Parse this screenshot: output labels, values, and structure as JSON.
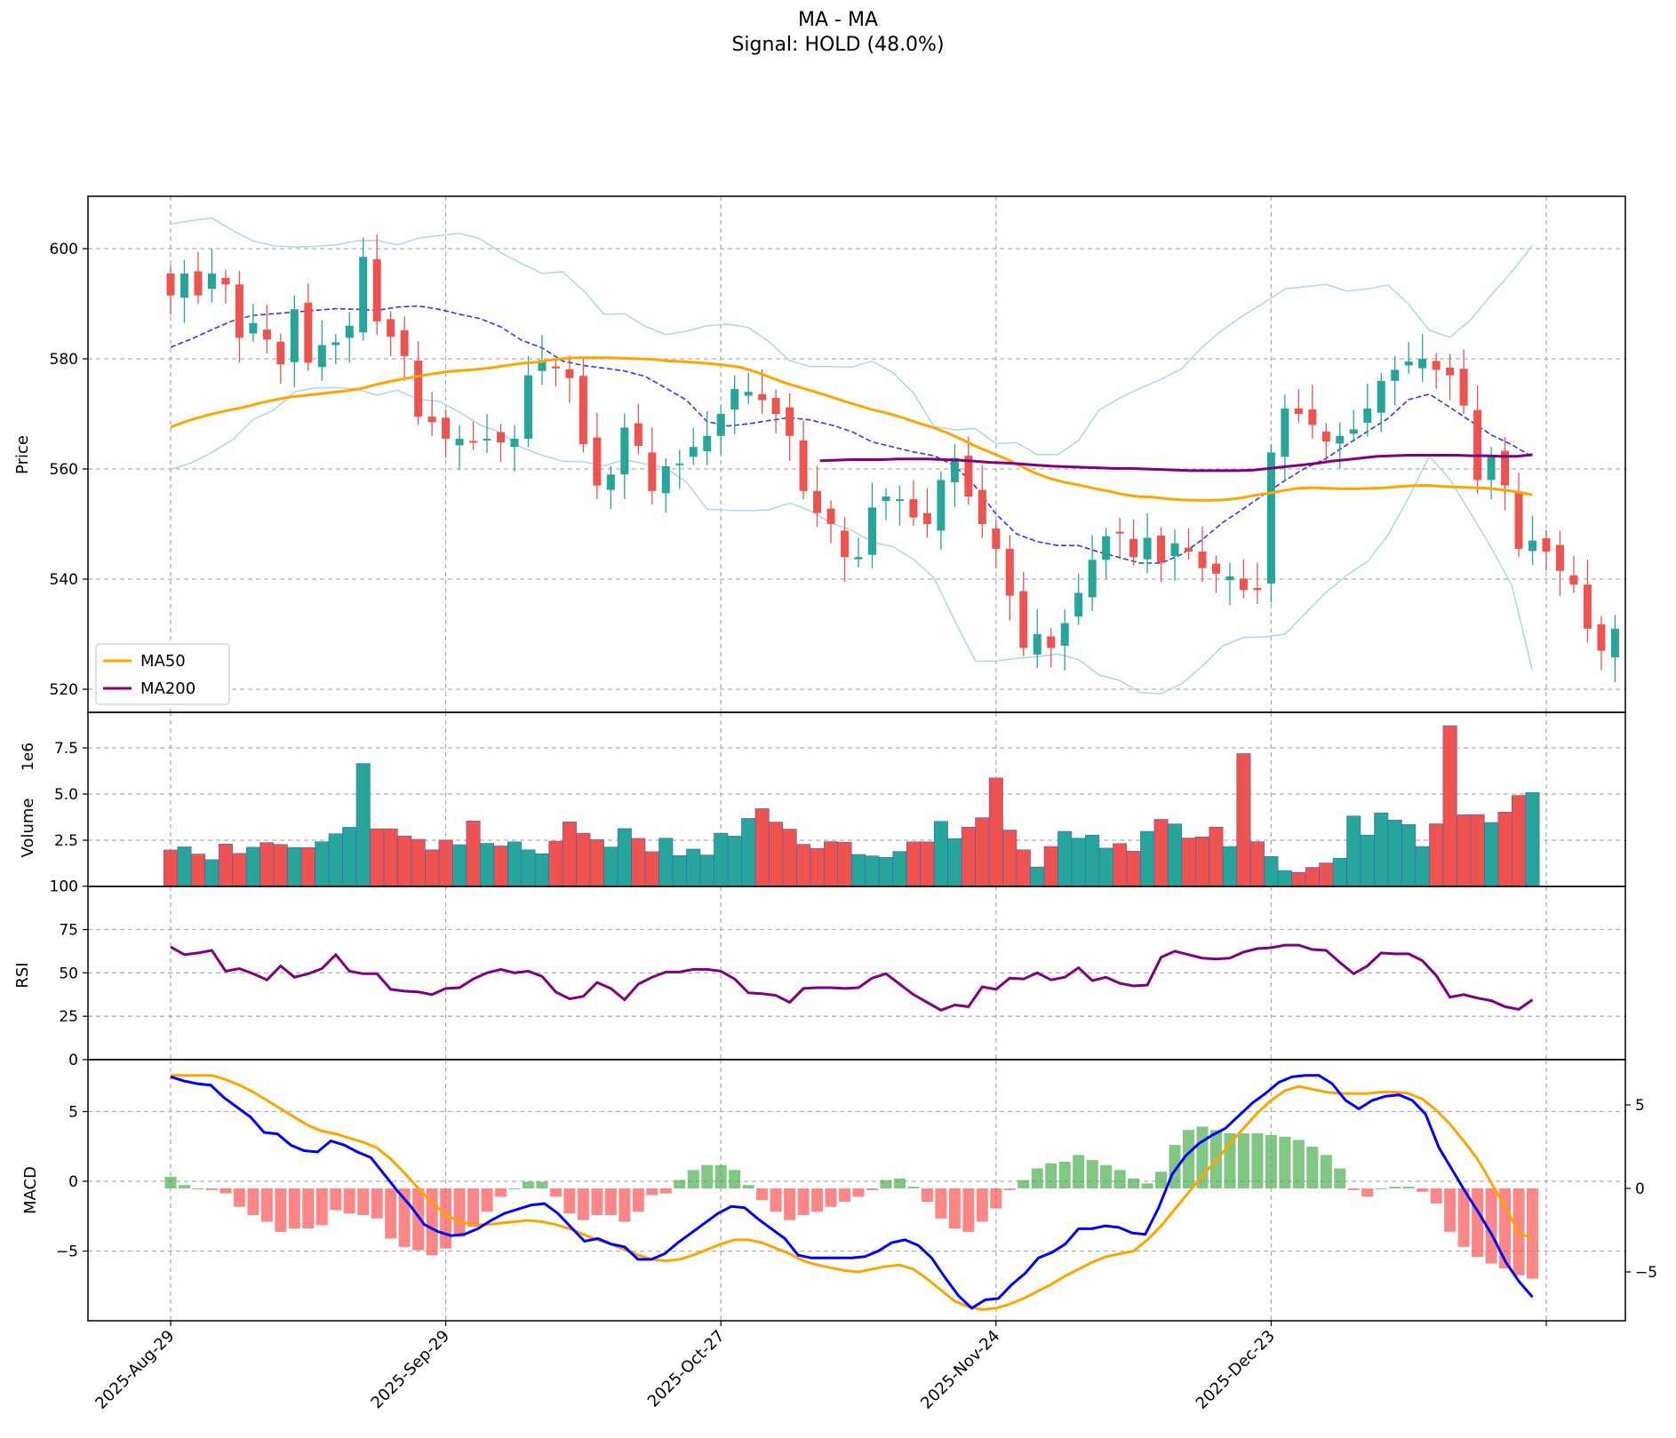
{
  "title": "MA - MA",
  "subtitle": "Signal: HOLD (48.0%)",
  "colors": {
    "up": "#26a69a",
    "down": "#ef5350",
    "ma50": "#ffa500",
    "ma200": "#800080",
    "bb_mid": "#3333ff",
    "bb_band": "#add8e6",
    "macd": "#0000ff",
    "signal": "#ffa500",
    "hist_pos": "#4caf50",
    "hist_neg": "#ff5252",
    "rsi": "#800080"
  },
  "chart_data": {
    "type": "candlestick",
    "x_tick_labels": [
      "2025-Aug-29",
      "2025-Sep-29",
      "2025-Oct-27",
      "2025-Nov-24",
      "2025-Dec-23"
    ],
    "n_bars": 100,
    "price_panel": {
      "ylabel": "Price",
      "ylim": [
        518,
        610
      ],
      "yticks": [
        520,
        540,
        560,
        580,
        600
      ],
      "legend": [
        "MA50",
        "MA200"
      ],
      "legend_loc": "lower-left",
      "closes": [
        591.5,
        595.5,
        591.5,
        595.5,
        593.5,
        583.8,
        586.5,
        583.5,
        579,
        589,
        579.3,
        582.5,
        583,
        586,
        598.5,
        586.8,
        584,
        580.5,
        569.5,
        568.5,
        565.5,
        565.5,
        565,
        565.5,
        564.8,
        565.5,
        577,
        579.8,
        578.5,
        576.5,
        564.5,
        557,
        559,
        567.5,
        564.2,
        556,
        560.5,
        561,
        564,
        566,
        570,
        574.5,
        574,
        572.5,
        570,
        566,
        556,
        552,
        550,
        544,
        544,
        553,
        555,
        554.5,
        551.2,
        550,
        558,
        562,
        555,
        550,
        545.5,
        537,
        527.5,
        530,
        527.5,
        532,
        537.5,
        543.5,
        547.8,
        548.5,
        544,
        547.5,
        543,
        546.5,
        545,
        542,
        541,
        540.5,
        538,
        538,
        563,
        571,
        570,
        568,
        565,
        566,
        567.2,
        571,
        576,
        578,
        579.5,
        580,
        578,
        577,
        571.5,
        558,
        562.5,
        557,
        545.5,
        547,
        545,
        541.5,
        539,
        531,
        527,
        531
      ],
      "ma50": [
        567.6,
        568.6,
        569.4,
        570.1,
        570.7,
        571.2,
        571.9,
        572.5,
        573,
        573.3,
        573.6,
        573.9,
        574.2,
        574.6,
        575.3,
        575.9,
        576.4,
        576.9,
        577.3,
        577.7,
        577.9,
        578.1,
        578.4,
        578.8,
        579.2,
        579.4,
        579.8,
        580.1,
        580.2,
        580.2,
        580.2,
        580.1,
        580,
        579.9,
        579.6,
        579.5,
        579.3,
        579.1,
        578.8,
        578.4,
        577.6,
        576.6,
        575.6,
        574.8,
        574,
        573.2,
        572.3,
        571.5,
        570.7,
        570.1,
        569.3,
        568.4,
        567.6,
        566.6,
        565.4,
        564.1,
        563,
        561.9,
        560.6,
        559.3,
        558.3,
        557.6,
        557.1,
        556.5,
        556,
        555.4,
        555,
        554.9,
        554.6,
        554.4,
        554.3,
        554.3,
        554.4,
        554.7,
        555.2,
        555.6,
        556.1,
        556.5,
        556.6,
        556.5,
        556.4,
        556.4,
        556.5,
        556.6,
        556.8,
        557,
        557,
        556.8,
        556.7,
        556.6,
        556.5,
        556.2,
        555.8,
        555.3
      ],
      "ma200": [
        561.5,
        561.6,
        561.7,
        561.7,
        561.7,
        561.8,
        561.8,
        561.8,
        561.7,
        561.6,
        561.4,
        561.2,
        561.1,
        560.9,
        560.7,
        560.5,
        560.4,
        560.3,
        560.2,
        560.1,
        560.1,
        560,
        559.9,
        559.8,
        559.7,
        559.7,
        559.7,
        559.7,
        559.8,
        560.1,
        560.4,
        560.7,
        561,
        561.4,
        561.7,
        562,
        562.3,
        562.4,
        562.5,
        562.5,
        562.5,
        562.5,
        562.4,
        562.4,
        562.3,
        562.3,
        562.6
      ],
      "bb_mid": [
        582.1,
        583.6,
        585.3,
        586.9,
        587.9,
        588.2,
        588.5,
        588.8,
        589.1,
        589,
        588.8,
        589.4,
        589.6,
        589,
        588.1,
        587.3,
        585.8,
        583.4,
        582,
        579.6,
        578.8,
        578.3,
        577.8,
        576.8,
        574.7,
        572.5,
        568.6,
        567.8,
        568.2,
        568.8,
        569.3,
        568.9,
        568,
        566.8,
        564.9,
        564,
        563.1,
        562.4,
        560.6,
        556.8,
        551.8,
        548.2,
        546.8,
        546.1,
        546.1,
        544.9,
        543.9,
        542.9,
        542.9,
        544.5,
        547.2,
        550.3,
        552.8,
        555.4,
        557.9,
        560.2,
        561.9,
        564.4,
        566.8,
        569.2,
        572.6,
        573.6,
        571.2,
        568.7,
        566.2,
        564.4,
        562.2
      ],
      "bb_upper": [
        604.5,
        605.1,
        605.6,
        603.3,
        601.4,
        600.5,
        600.3,
        600.4,
        600.7,
        601.4,
        601.5,
        600.7,
        601.9,
        602.4,
        602.8,
        601.8,
        599.3,
        597.3,
        595.5,
        595.8,
        592.4,
        588.1,
        588.2,
        585.9,
        584.4,
        585,
        586,
        586.3,
        585.7,
        583.1,
        579.7,
        578.6,
        578.6,
        578.5,
        579.6,
        577.5,
        573.8,
        567.7,
        567.1,
        567.3,
        564.6,
        564.8,
        562.6,
        562.6,
        565.2,
        570.7,
        572.9,
        574.7,
        576.3,
        578.2,
        582.2,
        585.3,
        587.9,
        590.2,
        592.7,
        593.1,
        593.5,
        592.3,
        592.7,
        593.4,
        589.9,
        585.2,
        583.9,
        587.1,
        591.6,
        595.8,
        600.6
      ],
      "bb_lower": [
        559.9,
        561.1,
        563,
        565.3,
        569,
        570.7,
        574,
        574.7,
        574.8,
        574.5,
        573.4,
        574.3,
        572.6,
        572.3,
        570.3,
        568,
        566.6,
        563.9,
        562.5,
        561.4,
        561.3,
        560.6,
        561.7,
        560.9,
        560.2,
        557.6,
        552.7,
        552.5,
        552.4,
        552.6,
        553.8,
        552.4,
        550.2,
        548.9,
        546.7,
        545.9,
        543.6,
        540.2,
        532.4,
        525.1,
        525.1,
        525.6,
        525.9,
        526.4,
        525.4,
        522.6,
        521.6,
        519.4,
        519.2,
        521,
        524.2,
        527.9,
        529.4,
        529.5,
        530,
        533.8,
        537.6,
        540.7,
        543.2,
        548,
        554.8,
        562.3,
        558.1,
        552,
        545.7,
        538.8,
        523.4
      ]
    },
    "volume_panel": {
      "ylabel": "Volume",
      "scale_label": "1e6",
      "yticks": [
        2.5,
        5.0,
        7.5
      ],
      "ylim": [
        0,
        9.5
      ],
      "values_millions": [
        1.97,
        2.14,
        1.75,
        1.45,
        2.29,
        1.79,
        2.12,
        2.37,
        2.27,
        2.11,
        2.1,
        2.42,
        2.85,
        3.2,
        6.65,
        3.12,
        3.12,
        2.73,
        2.55,
        1.98,
        2.51,
        2.26,
        3.54,
        2.33,
        2.19,
        2.41,
        1.98,
        1.77,
        2.45,
        3.49,
        2.88,
        2.53,
        2.13,
        3.13,
        2.6,
        1.88,
        2.61,
        1.67,
        2.02,
        1.7,
        2.88,
        2.72,
        3.68,
        4.21,
        3.48,
        3.1,
        2.28,
        2.06,
        2.42,
        2.39,
        1.73,
        1.65,
        1.57,
        1.89,
        2.41,
        2.41,
        3.52,
        2.59,
        3.21,
        3.72,
        5.87,
        3.05,
        1.98,
        1.05,
        2.16,
        2.98,
        2.61,
        2.78,
        2.07,
        2.32,
        1.91,
        2.98,
        3.63,
        3.38,
        2.62,
        2.68,
        3.21,
        2.16,
        7.19,
        2.42,
        1.62,
        0.86,
        0.76,
        1.03,
        1.27,
        1.53,
        3.81,
        2.78,
        3.98,
        3.59,
        3.35,
        2.16,
        3.39,
        8.7,
        3.88,
        3.89,
        3.46,
        4.02,
        4.92,
        5.08
      ]
    },
    "rsi_panel": {
      "ylabel": "RSI",
      "ylim": [
        0,
        100
      ],
      "yticks": [
        0,
        25,
        50,
        75,
        100
      ],
      "values": [
        65,
        60.5,
        61.5,
        63,
        51,
        52.5,
        49.5,
        46,
        54,
        47.5,
        49.5,
        52.5,
        60.5,
        51,
        49.5,
        49.5,
        40.5,
        39.5,
        39,
        37.5,
        41,
        41.5,
        46.5,
        50,
        52,
        50,
        51,
        48,
        39,
        35,
        36.5,
        44.5,
        41,
        34.5,
        43.5,
        47.5,
        50.5,
        50.5,
        52,
        52,
        51,
        46.5,
        38.5,
        38,
        37,
        33,
        41,
        41.5,
        41.5,
        41,
        41.5,
        47,
        49.5,
        43.5,
        37.5,
        33,
        28.5,
        31.5,
        30.5,
        42,
        40.5,
        47,
        46.5,
        50,
        46,
        47.5,
        53,
        45.5,
        47.5,
        44,
        42.5,
        43,
        59,
        62.5,
        60.5,
        58.5,
        58,
        58.5,
        62,
        64,
        64.5,
        66,
        66,
        63.5,
        63,
        56,
        49.5,
        54,
        61.5,
        61,
        61,
        57,
        48.5,
        36,
        37.5,
        35.5,
        34,
        30.5,
        29,
        34.5
      ]
    },
    "macd_panel": {
      "ylabel": "MACD",
      "yticks_left": [
        -5,
        0,
        5
      ],
      "yticks_right": [
        -5,
        0,
        5
      ],
      "ylim": [
        -9.8,
        8.1
      ],
      "macd": [
        7.5,
        7.2,
        7,
        6.9,
        6,
        5.3,
        4.6,
        3.5,
        3.4,
        2.6,
        2.2,
        2.1,
        2.9,
        2.6,
        2.1,
        1.7,
        0.5,
        -0.7,
        -1.8,
        -3.1,
        -3.6,
        -3.9,
        -3.8,
        -3.4,
        -2.8,
        -2.3,
        -2,
        -1.7,
        -1.6,
        -2.3,
        -3.3,
        -4.3,
        -4.1,
        -4.5,
        -4.7,
        -5.6,
        -5.6,
        -5.2,
        -4.4,
        -3.7,
        -3,
        -2.3,
        -1.8,
        -1.9,
        -2.7,
        -3.4,
        -4.1,
        -5.3,
        -5.5,
        -5.5,
        -5.5,
        -5.5,
        -5.4,
        -5,
        -4.4,
        -4.2,
        -4.6,
        -5.5,
        -6.9,
        -8.2,
        -9.1,
        -8.5,
        -8.4,
        -7.4,
        -6.6,
        -5.5,
        -5.1,
        -4.5,
        -3.4,
        -3.4,
        -3.2,
        -3.3,
        -3.7,
        -3.8,
        -1.9,
        0.5,
        1.8,
        2.7,
        3.3,
        3.8,
        4.7,
        5.6,
        6.3,
        7.1,
        7.5,
        7.6,
        7.6,
        7,
        5.8,
        5.2,
        5.8,
        6.1,
        6.2,
        5.8,
        4.8,
        2.4,
        0.8,
        -0.8,
        -2.3,
        -3.9,
        -5.8,
        -7.2,
        -8.3
      ],
      "signal": [
        7.6,
        7.6,
        7.6,
        7.6,
        7.3,
        6.9,
        6.4,
        5.8,
        5.2,
        4.6,
        4,
        3.6,
        3.4,
        3.1,
        2.8,
        2.4,
        1.6,
        0.6,
        -0.5,
        -1.5,
        -2.4,
        -2.9,
        -3.1,
        -3.1,
        -3,
        -2.9,
        -2.8,
        -2.9,
        -3.1,
        -3.4,
        -3.8,
        -4.2,
        -4.5,
        -4.9,
        -5.3,
        -5.6,
        -5.7,
        -5.6,
        -5.3,
        -4.9,
        -4.5,
        -4.2,
        -4.2,
        -4.4,
        -4.8,
        -5.2,
        -5.7,
        -6,
        -6.2,
        -6.4,
        -6.5,
        -6.3,
        -6.1,
        -6,
        -6.3,
        -7,
        -7.8,
        -8.6,
        -9,
        -9.2,
        -9.1,
        -8.8,
        -8.4,
        -7.9,
        -7.4,
        -6.8,
        -6.3,
        -5.8,
        -5.4,
        -5.2,
        -5,
        -4.2,
        -3.2,
        -2,
        -0.8,
        0.4,
        1.5,
        2.7,
        3.8,
        4.9,
        5.8,
        6.5,
        6.8,
        6.6,
        6.4,
        6.3,
        6.3,
        6.3,
        6.4,
        6.4,
        6.3,
        5.9,
        5.1,
        4.1,
        2.9,
        1.6,
        -0.1,
        -1.8,
        -3.7,
        -4.1
      ],
      "hist_right_axis": [
        0.7,
        0.2,
        0,
        -0.1,
        -0.3,
        -1.1,
        -1.6,
        -2.0,
        -2.6,
        -2.4,
        -2.4,
        -2.2,
        -1.3,
        -1.5,
        -1.6,
        -1.8,
        -3.0,
        -3.5,
        -3.7,
        -4.0,
        -3.6,
        -2.9,
        -2.3,
        -1.4,
        -0.5,
        0,
        0.4,
        0.4,
        -0.5,
        -1.5,
        -1.9,
        -1.6,
        -1.6,
        -2.0,
        -1.4,
        -0.4,
        -0.3,
        0.5,
        1.1,
        1.4,
        1.4,
        1.1,
        0.2,
        -0.7,
        -1.4,
        -1.9,
        -1.6,
        -1.4,
        -1.1,
        -0.8,
        -0.5,
        -0.1,
        0.5,
        0.6,
        0.1,
        -0.8,
        -1.8,
        -2.4,
        -2.6,
        -2.0,
        -1.2,
        -0.1,
        0.5,
        1.2,
        1.5,
        1.6,
        2.0,
        1.7,
        1.4,
        1.1,
        0.6,
        0.3,
        1.0,
        2.6,
        3.5,
        3.7,
        3.5,
        3.3,
        3.3,
        3.3,
        3.2,
        3.1,
        2.9,
        2.5,
        2.0,
        1.2,
        -0.1,
        -0.5,
        0,
        0.1,
        0.1,
        -0.2,
        -0.9,
        -2.6,
        -3.5,
        -4.1,
        -4.5,
        -4.8,
        -5.2,
        -5.4
      ]
    }
  }
}
